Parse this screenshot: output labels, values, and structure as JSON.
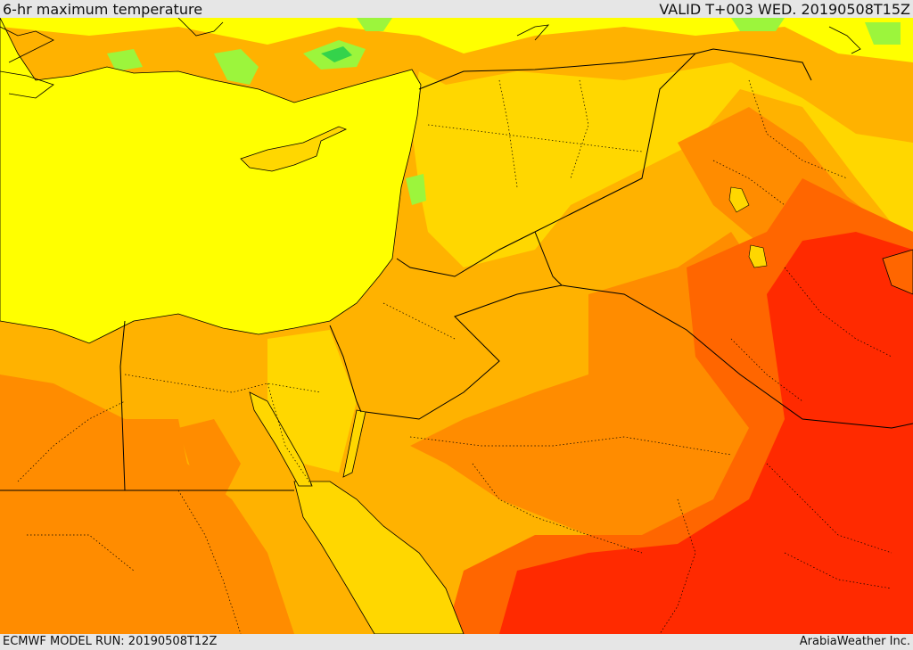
{
  "header": {
    "title": "6-hr maximum temperature",
    "valid": "VALID T+003 WED. 20190508T15Z"
  },
  "footer": {
    "model_run": "ECMWF MODEL RUN: 20190508T12Z",
    "credit": "ArabiaWeather Inc."
  },
  "colors": {
    "sea": "#ffff00",
    "warm_1": "#ffd700",
    "warm_2": "#ffb200",
    "warm_3": "#ff8c00",
    "hot_1": "#ff6600",
    "hot_2": "#ff2a00",
    "cool": "#9cf53c",
    "coolest": "#34d34b",
    "border": "#000000"
  }
}
